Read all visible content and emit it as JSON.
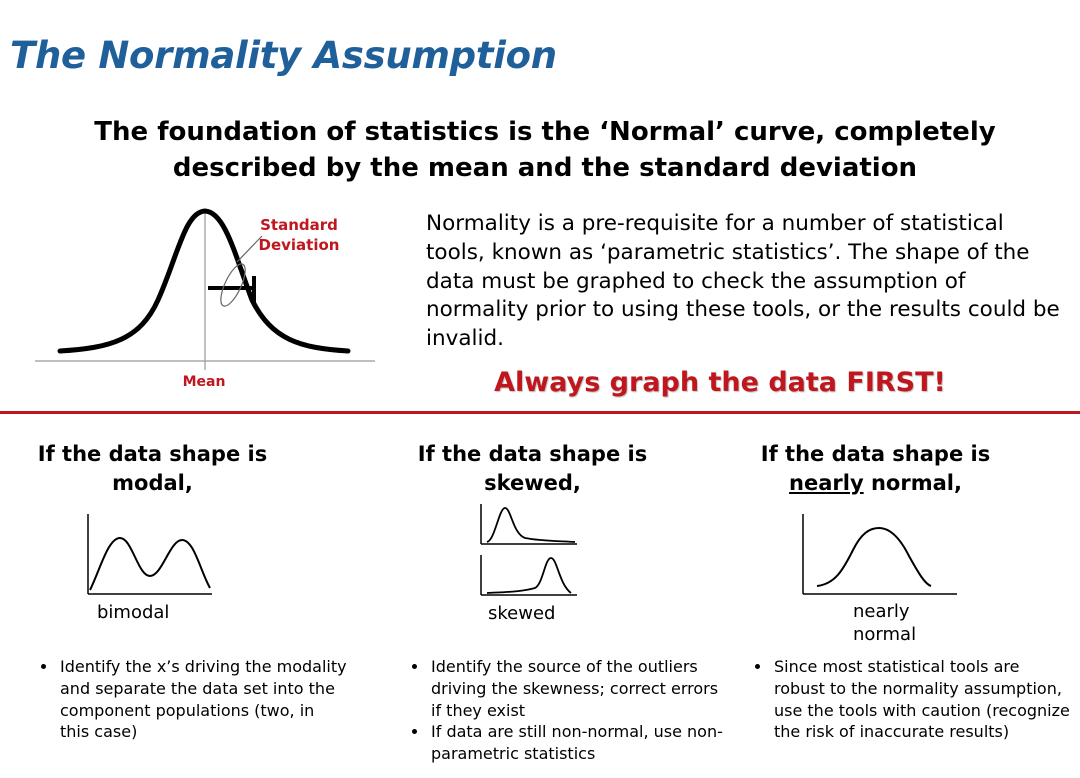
{
  "title": "The Normality Assumption",
  "subtitle": "The foundation of statistics is the ‘Normal’ curve, completely described by the mean and the standard deviation",
  "intro": "Normality is a pre-requisite for a number of statistical tools, known as ‘parametric statistics’.  The shape of the data must be graphed to check the assumption of normality prior to using these tools, or the results could be invalid.",
  "callout": "Always graph the data FIRST!",
  "normal_diagram": {
    "sd_label_line1": "Standard",
    "sd_label_line2": "Deviation",
    "mean_label": "Mean"
  },
  "columns": [
    {
      "heading_line1": "If the data shape is",
      "heading_line2": "modal,",
      "caption": "bimodal",
      "bullets": [
        "Identify the x’s driving the modality and separate the data set into the component populations (two, in this case)"
      ]
    },
    {
      "heading_line1": "If the data shape is",
      "heading_line2": "skewed,",
      "caption": "skewed",
      "bullets": [
        "Identify the source of the outliers driving the skewness; correct errors if they exist",
        "If data are still non-normal, use non-parametric statistics"
      ]
    },
    {
      "heading_line1": "If the data shape is",
      "heading_line2_underlined": "nearly",
      "heading_line2_rest": " normal,",
      "caption_line1": "nearly",
      "caption_line2": "normal",
      "bullets": [
        "Since most statistical tools are robust to the normality assumption, use the tools with caution (recognize the risk of inaccurate results)"
      ]
    }
  ],
  "colors": {
    "title_blue": "#1f5f9a",
    "accent_red": "#c0161e",
    "text": "#000000"
  }
}
